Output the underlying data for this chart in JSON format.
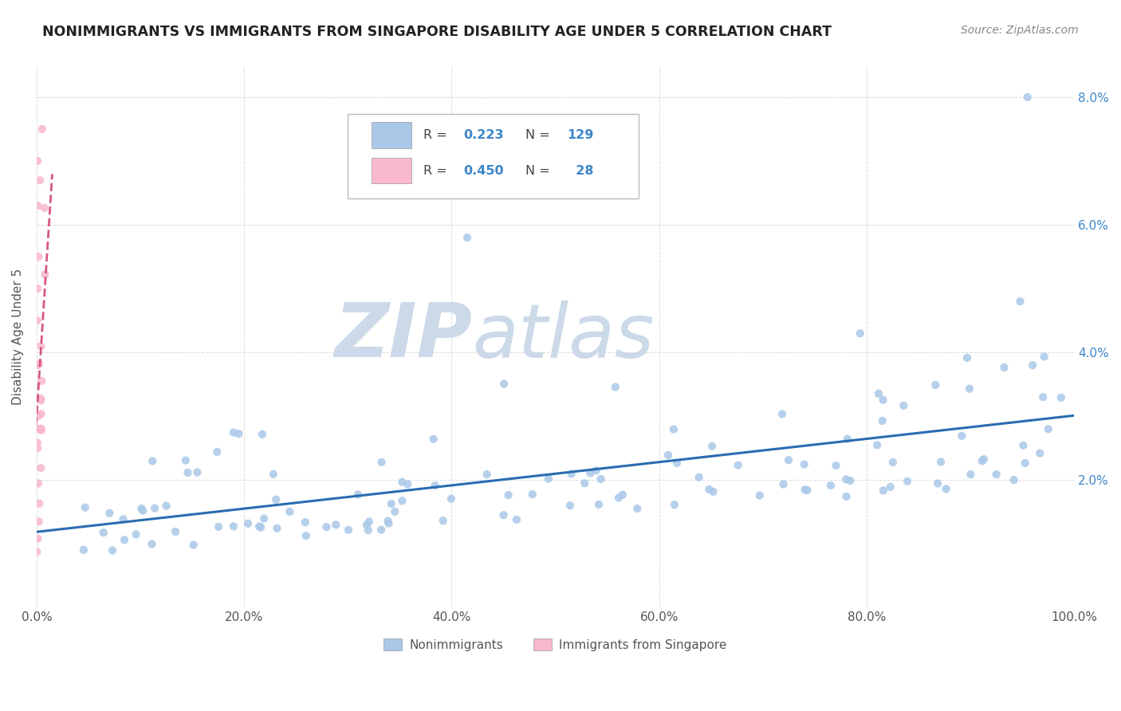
{
  "title": "NONIMMIGRANTS VS IMMIGRANTS FROM SINGAPORE DISABILITY AGE UNDER 5 CORRELATION CHART",
  "source": "Source: ZipAtlas.com",
  "ylabel": "Disability Age Under 5",
  "xlabel": "",
  "watermark_zip": "ZIP",
  "watermark_atlas": "atlas",
  "legend_labels": [
    "Nonimmigrants",
    "Immigrants from Singapore"
  ],
  "nonimm_R": 0.223,
  "nonimm_N": 129,
  "imm_R": 0.45,
  "imm_N": 28,
  "nonimm_color": "#aac8e8",
  "nonimm_line_color": "#2b6cb0",
  "imm_color": "#f9b8cc",
  "imm_line_color": "#d45882",
  "background_color": "#ffffff",
  "grid_color": "#cccccc",
  "title_color": "#222222",
  "source_color": "#888888",
  "value_color": "#3d85c8",
  "label_color": "#444444",
  "watermark_color": "#ccd9e8",
  "xlim": [
    0.0,
    1.0
  ],
  "ylim": [
    0.0,
    0.085
  ],
  "xticks": [
    0.0,
    0.2,
    0.4,
    0.6,
    0.8,
    1.0
  ],
  "yticks": [
    0.0,
    0.02,
    0.04,
    0.06,
    0.08
  ],
  "xticklabels": [
    "0.0%",
    "20.0%",
    "40.0%",
    "60.0%",
    "80.0%",
    "100.0%"
  ],
  "yticklabels_right": [
    "",
    "2.0%",
    "4.0%",
    "6.0%",
    "8.0%"
  ]
}
